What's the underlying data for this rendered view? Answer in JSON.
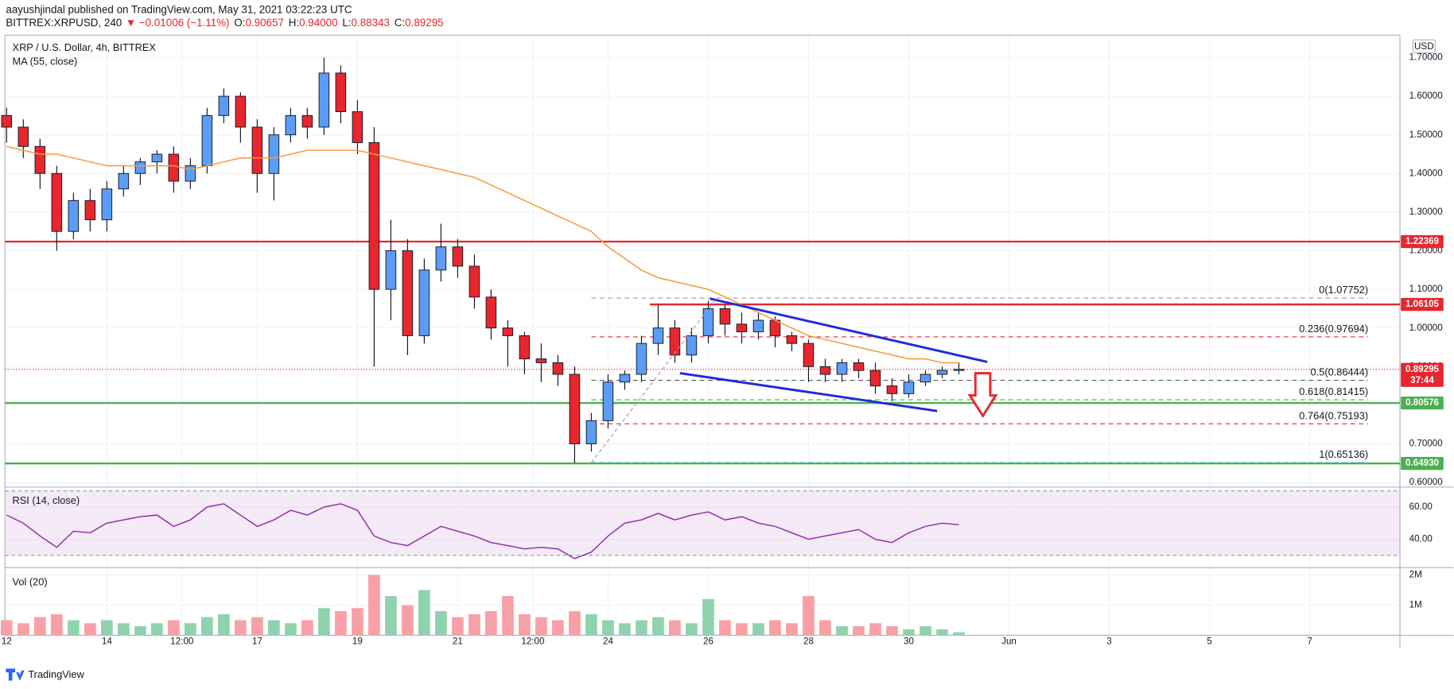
{
  "header": {
    "publisher": "aayushjindal published on TradingView.com, May 31, 2021 03:22:23 UTC",
    "symbol": "BITTREX:XRPUSD, 240",
    "change": "▼ −0.01006 (−1.11%)",
    "ohlc": [
      {
        "label": "O:",
        "value": "0.90657"
      },
      {
        "label": "H:",
        "value": "0.94000"
      },
      {
        "label": "L:",
        "value": "0.88343"
      },
      {
        "label": "C:",
        "value": "0.89295"
      }
    ]
  },
  "chart_data": {
    "type": "candlestick",
    "title": "XRP / U.S. Dollar, 4h, BITTREX",
    "currency": "USD",
    "colors": {
      "up": "#5b9cf6",
      "down": "#e8262e"
    },
    "open": [
      1.55,
      1.52,
      1.47,
      1.4,
      1.25,
      1.33,
      1.28,
      1.36,
      1.4,
      1.43,
      1.45,
      1.38,
      1.42,
      1.55,
      1.6,
      1.52,
      1.4,
      1.5,
      1.55,
      1.52,
      1.66,
      1.56,
      1.48,
      1.1,
      1.2,
      0.98,
      1.15,
      1.21,
      1.16,
      1.08,
      1.0,
      0.98,
      0.92,
      0.91,
      0.88,
      0.7,
      0.76,
      0.86,
      0.88,
      0.96,
      1.0,
      0.93,
      0.98,
      1.05,
      1.01,
      0.99,
      1.02,
      0.98,
      0.96,
      0.9,
      0.88,
      0.91,
      0.89,
      0.85,
      0.83,
      0.86,
      0.88,
      0.89
    ],
    "high": [
      1.57,
      1.54,
      1.49,
      1.42,
      1.35,
      1.36,
      1.38,
      1.42,
      1.44,
      1.46,
      1.47,
      1.44,
      1.57,
      1.62,
      1.61,
      1.54,
      1.52,
      1.57,
      1.57,
      1.7,
      1.68,
      1.59,
      1.52,
      1.28,
      1.23,
      1.18,
      1.27,
      1.23,
      1.19,
      1.1,
      1.02,
      0.99,
      0.96,
      0.93,
      0.9,
      0.78,
      0.88,
      0.89,
      0.98,
      1.06,
      1.02,
      1.0,
      1.07,
      1.06,
      1.04,
      1.04,
      1.03,
      0.99,
      0.97,
      0.92,
      0.92,
      0.92,
      0.91,
      0.87,
      0.88,
      0.89,
      0.9,
      0.91
    ],
    "low": [
      1.48,
      1.44,
      1.36,
      1.2,
      1.23,
      1.25,
      1.25,
      1.34,
      1.37,
      1.4,
      1.35,
      1.36,
      1.4,
      1.53,
      1.48,
      1.35,
      1.33,
      1.48,
      1.49,
      1.5,
      1.53,
      1.45,
      0.9,
      1.02,
      0.93,
      0.96,
      1.12,
      1.13,
      1.05,
      0.97,
      0.9,
      0.88,
      0.86,
      0.85,
      0.65,
      0.68,
      0.74,
      0.84,
      0.86,
      0.93,
      0.91,
      0.91,
      0.96,
      0.98,
      0.96,
      0.97,
      0.95,
      0.94,
      0.86,
      0.86,
      0.86,
      0.87,
      0.83,
      0.81,
      0.82,
      0.85,
      0.87,
      0.88
    ],
    "close": [
      1.52,
      1.47,
      1.4,
      1.25,
      1.33,
      1.28,
      1.36,
      1.4,
      1.43,
      1.45,
      1.38,
      1.42,
      1.55,
      1.6,
      1.52,
      1.4,
      1.5,
      1.55,
      1.52,
      1.66,
      1.56,
      1.48,
      1.1,
      1.2,
      0.98,
      1.15,
      1.21,
      1.16,
      1.08,
      1.0,
      0.98,
      0.92,
      0.91,
      0.88,
      0.7,
      0.76,
      0.86,
      0.88,
      0.96,
      1.0,
      0.93,
      0.98,
      1.05,
      1.01,
      0.99,
      1.02,
      0.98,
      0.96,
      0.9,
      0.88,
      0.91,
      0.89,
      0.85,
      0.83,
      0.86,
      0.88,
      0.89,
      0.893
    ],
    "ma": {
      "name": "MA (55, close)",
      "color": "#f49b3b",
      "values": [
        1.47,
        1.46,
        1.45,
        1.45,
        1.44,
        1.43,
        1.42,
        1.42,
        1.42,
        1.42,
        1.42,
        1.41,
        1.42,
        1.43,
        1.44,
        1.44,
        1.44,
        1.45,
        1.46,
        1.46,
        1.46,
        1.46,
        1.45,
        1.44,
        1.43,
        1.42,
        1.41,
        1.4,
        1.39,
        1.37,
        1.35,
        1.33,
        1.31,
        1.29,
        1.27,
        1.25,
        1.21,
        1.18,
        1.15,
        1.13,
        1.12,
        1.11,
        1.1,
        1.08,
        1.06,
        1.04,
        1.02,
        1.0,
        0.98,
        0.97,
        0.96,
        0.95,
        0.94,
        0.93,
        0.92,
        0.92,
        0.91,
        0.91
      ]
    },
    "xlim": [
      -0.1,
      83.4
    ],
    "xticks": [
      {
        "value": 0,
        "label": "12"
      },
      {
        "value": 6,
        "label": "14"
      },
      {
        "value": 10.5,
        "label": "12:00"
      },
      {
        "value": 15,
        "label": "17"
      },
      {
        "value": 21,
        "label": "19"
      },
      {
        "value": 27,
        "label": "21"
      },
      {
        "value": 31.5,
        "label": "12:00"
      },
      {
        "value": 36,
        "label": "24"
      },
      {
        "value": 42,
        "label": "26"
      },
      {
        "value": 48,
        "label": "28"
      },
      {
        "value": 54,
        "label": "30"
      },
      {
        "value": 60,
        "label": "Jun"
      },
      {
        "value": 66,
        "label": "3"
      },
      {
        "value": 72,
        "label": "5"
      },
      {
        "value": 78,
        "label": "7"
      }
    ],
    "ylim": [
      0.588,
      1.758
    ],
    "yticks": [
      {
        "value": 1.7,
        "label": "1.70000"
      },
      {
        "value": 1.6,
        "label": "1.60000"
      },
      {
        "value": 1.5,
        "label": "1.50000"
      },
      {
        "value": 1.4,
        "label": "1.40000"
      },
      {
        "value": 1.3,
        "label": "1.30000"
      },
      {
        "value": 1.2,
        "label": "1.20000"
      },
      {
        "value": 1.1,
        "label": "1.10000"
      },
      {
        "value": 1.0,
        "label": "1.00000"
      },
      {
        "value": 0.9,
        "label": "0.90000"
      },
      {
        "value": 0.8,
        "label": "0.80000"
      },
      {
        "value": 0.7,
        "label": "0.70000"
      },
      {
        "value": 0.6,
        "label": "0.60000"
      }
    ],
    "grid": true,
    "levels": [
      {
        "value": 1.22369,
        "label": "1.22369",
        "color": "#e8262e",
        "from": -0.1
      },
      {
        "value": 1.06105,
        "label": "1.06105",
        "color": "#e8262e",
        "from": 38.5
      },
      {
        "value": 0.80576,
        "label": "0.80576",
        "color": "#4caf50",
        "from": -0.1
      },
      {
        "value": 0.6493,
        "label": "0.64930",
        "color": "#4caf50",
        "from": -0.1
      }
    ],
    "last": {
      "value": 0.89295,
      "label": "0.89295",
      "countdown": "37:44",
      "color": "#e8262e"
    },
    "fib": {
      "from": 35,
      "to": 81.5,
      "levels": [
        {
          "value": 1.07752,
          "label": "0(1.07752)",
          "color": "#9e9e9e"
        },
        {
          "value": 0.97694,
          "label": "0.236(0.97694)",
          "color": "#e8262e"
        },
        {
          "value": 0.86444,
          "label": "0.5(0.86444)",
          "color": "#555555"
        },
        {
          "value": 0.81415,
          "label": "0.618(0.81415)",
          "color": "#4caf50"
        },
        {
          "value": 0.75193,
          "label": "0.764(0.75193)",
          "color": "#e8262e"
        },
        {
          "value": 0.65136,
          "label": "1(0.65136)",
          "color": "#26a6c9"
        }
      ]
    },
    "trendlines": [
      {
        "from": [
          42.1,
          1.076
        ],
        "to": [
          58.7,
          0.912
        ],
        "color": "#1f2bd8"
      },
      {
        "from": [
          40.3,
          0.883
        ],
        "to": [
          55.7,
          0.785
        ],
        "color": "#1f2bd8"
      },
      {
        "from": [
          35,
          0.65136
        ],
        "to": [
          42.5,
          1.07752
        ],
        "color": "#9e9e9e"
      }
    ],
    "rsi": {
      "name": "RSI (14, close)",
      "color": "#8e24aa",
      "values": [
        55,
        50,
        42,
        35,
        45,
        44,
        50,
        52,
        54,
        55,
        48,
        52,
        60,
        62,
        55,
        48,
        52,
        58,
        55,
        60,
        62,
        58,
        42,
        38,
        36,
        42,
        48,
        45,
        42,
        38,
        36,
        34,
        35,
        34,
        28,
        32,
        42,
        50,
        52,
        56,
        52,
        55,
        57,
        52,
        54,
        50,
        48,
        44,
        40,
        42,
        44,
        46,
        40,
        38,
        44,
        48,
        50,
        49
      ],
      "ylim": [
        22.35,
        72.35
      ],
      "yticks": [
        {
          "value": 60,
          "label": "60.00"
        },
        {
          "value": 40,
          "label": "40.00"
        }
      ],
      "band": [
        30,
        70
      ]
    },
    "volume": {
      "name": "Vol (20)",
      "colors": {
        "up": "#8fd3ae",
        "down": "#f7a1a6"
      },
      "values": [
        0.5,
        0.4,
        0.6,
        0.7,
        0.5,
        0.4,
        0.5,
        0.4,
        0.3,
        0.4,
        0.5,
        0.4,
        0.6,
        0.7,
        0.5,
        0.6,
        0.5,
        0.4,
        0.5,
        0.9,
        0.8,
        0.9,
        2.0,
        1.3,
        1.0,
        1.5,
        0.8,
        0.6,
        0.7,
        0.8,
        1.3,
        0.7,
        0.6,
        0.5,
        0.8,
        0.7,
        0.5,
        0.4,
        0.5,
        0.6,
        0.5,
        0.4,
        1.2,
        0.5,
        0.4,
        0.4,
        0.5,
        0.4,
        1.3,
        0.5,
        0.3,
        0.3,
        0.4,
        0.3,
        0.2,
        0.3,
        0.2,
        0.1
      ],
      "ylim": [
        0,
        2.24
      ],
      "yticks": [
        {
          "value": 2,
          "label": "2M"
        },
        {
          "value": 1,
          "label": "1M"
        }
      ]
    }
  },
  "footer": {
    "brand": "TradingView"
  }
}
